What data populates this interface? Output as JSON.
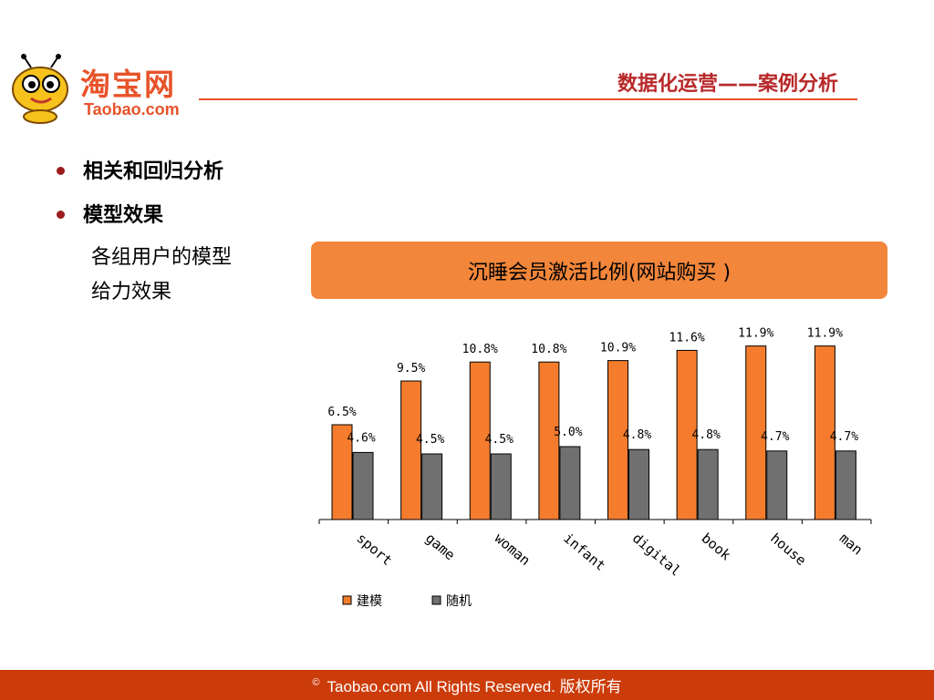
{
  "header": {
    "logo_cn": "淘宝网",
    "logo_en": "Taobao.com",
    "title": "数据化运营——案例分析"
  },
  "bullets": [
    {
      "label": "相关和回归分析"
    },
    {
      "label": "模型效果"
    }
  ],
  "subtext": {
    "line1": "各组用户的模型",
    "line2": "给力效果"
  },
  "chart_banner": "沉睡会员激活比例(网站购买 )",
  "chart_data": {
    "type": "bar",
    "title": "沉睡会员激活比例(网站购买 )",
    "categories": [
      "sport",
      "game",
      "woman",
      "infant",
      "digital",
      "book",
      "house",
      "man"
    ],
    "series": [
      {
        "name": "建模",
        "values": [
          6.5,
          9.5,
          10.8,
          10.8,
          10.9,
          11.6,
          11.9,
          11.9
        ],
        "labels": [
          "6.5%",
          "9.5%",
          "10.8%",
          "10.8%",
          "10.9%",
          "11.6%",
          "11.9%",
          "11.9%"
        ],
        "color": "#f47c2c"
      },
      {
        "name": "随机",
        "values": [
          4.6,
          4.5,
          4.5,
          5.0,
          4.8,
          4.8,
          4.7,
          4.7
        ],
        "labels": [
          "4.6%",
          "4.5%",
          "4.5%",
          "5.0%",
          "4.8%",
          "4.8%",
          "4.7%",
          "4.7%"
        ],
        "color": "#707070"
      }
    ],
    "xlabel": "",
    "ylabel": "",
    "ylim": [
      0,
      14
    ],
    "legend": "bottom-left",
    "grid": false
  },
  "footer": {
    "copyright_symbol": "©",
    "text": "Taobao.com  All Rights Reserved. 版权所有"
  },
  "colors": {
    "accent": "#e8532a",
    "title": "#b8292a",
    "banner": "#f2863a",
    "footer": "#cc3c0a"
  }
}
